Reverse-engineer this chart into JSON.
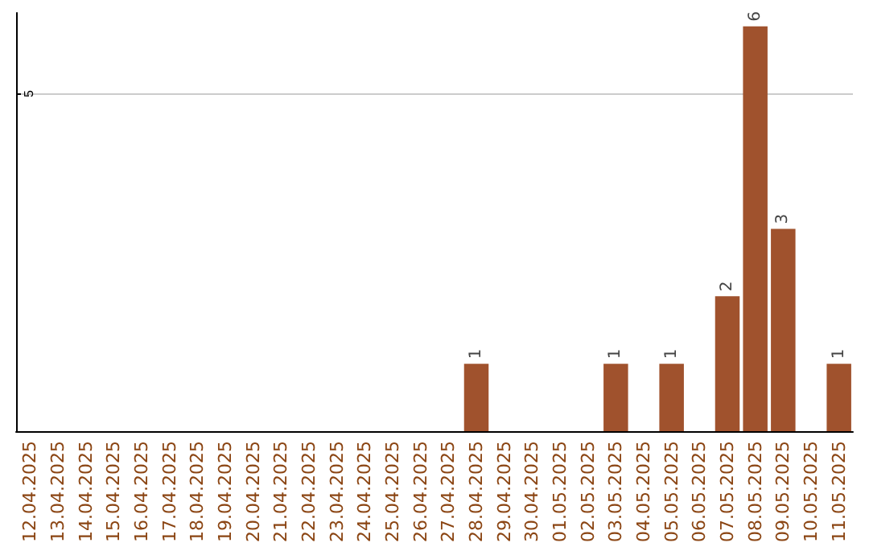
{
  "chart_data": {
    "type": "bar",
    "categories": [
      "12.04.2025",
      "13.04.2025",
      "14.04.2025",
      "15.04.2025",
      "16.04.2025",
      "17.04.2025",
      "18.04.2025",
      "19.04.2025",
      "20.04.2025",
      "21.04.2025",
      "22.04.2025",
      "23.04.2025",
      "24.04.2025",
      "25.04.2025",
      "26.04.2025",
      "27.04.2025",
      "28.04.2025",
      "29.04.2025",
      "30.04.2025",
      "01.05.2025",
      "02.05.2025",
      "03.05.2025",
      "04.05.2025",
      "05.05.2025",
      "06.05.2025",
      "07.05.2025",
      "08.05.2025",
      "09.05.2025",
      "10.05.2025",
      "11.05.2025"
    ],
    "values": [
      null,
      null,
      null,
      null,
      null,
      null,
      null,
      null,
      null,
      null,
      null,
      null,
      null,
      null,
      null,
      null,
      1,
      null,
      null,
      null,
      null,
      1,
      null,
      1,
      null,
      2,
      6,
      3,
      null,
      1
    ],
    "value_labels": [
      null,
      null,
      null,
      null,
      null,
      null,
      null,
      null,
      null,
      null,
      null,
      null,
      null,
      null,
      null,
      null,
      "1",
      null,
      null,
      null,
      null,
      "1",
      null,
      "1",
      null,
      "2",
      "6",
      "3",
      null,
      "1"
    ],
    "color": "#a0522d",
    "ylim": [
      0,
      6.2
    ],
    "yticks": [
      5
    ],
    "grid": "y"
  }
}
